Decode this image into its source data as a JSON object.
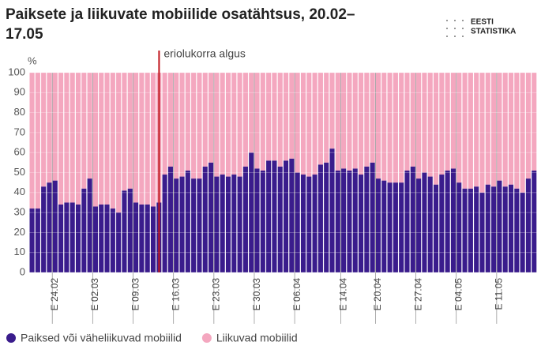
{
  "chart_data": {
    "type": "stacked_bar",
    "title": "Paiksete ja liikuvate mobiilide osatähtsus, 20.02–17.05",
    "logo": [
      "EESTI",
      "STATISTIKA"
    ],
    "ylabel": "%",
    "annotation": "eriolukorra algus",
    "categories": [
      null,
      null,
      null,
      null,
      "E 24.02",
      null,
      null,
      null,
      null,
      null,
      null,
      "E 02.03",
      null,
      null,
      null,
      null,
      null,
      null,
      "E 09.03",
      null,
      null,
      null,
      null,
      null,
      null,
      "E 16.03",
      null,
      null,
      null,
      null,
      null,
      null,
      "E 23.03",
      null,
      null,
      null,
      null,
      null,
      null,
      "E 30.03",
      null,
      null,
      null,
      null,
      null,
      null,
      "E 06.04",
      null,
      null,
      null,
      null,
      null,
      null,
      null,
      "E 14.04",
      null,
      null,
      null,
      null,
      null,
      "E 20.04",
      null,
      null,
      null,
      null,
      null,
      null,
      "E 27.04",
      null,
      null,
      null,
      null,
      null,
      null,
      "E 04.05",
      null,
      null,
      null,
      null,
      null,
      null,
      "E 11.05",
      null,
      null,
      null,
      null,
      null,
      null
    ],
    "series": [
      {
        "name": "Paiksed või väheliikuvad mobiilid",
        "color": "#3a1c8c",
        "values": [
          32,
          32,
          43,
          45,
          46,
          34,
          35,
          35,
          34,
          42,
          47,
          33,
          34,
          34,
          32,
          30,
          41,
          42,
          35,
          34,
          34,
          33,
          35,
          49,
          53,
          47,
          48,
          51,
          47,
          47,
          53,
          55,
          48,
          49,
          48,
          49,
          48,
          53,
          60,
          52,
          51,
          56,
          56,
          53,
          56,
          57,
          50,
          49,
          48,
          49,
          54,
          55,
          62,
          51,
          52,
          51,
          52,
          49,
          53,
          55,
          47,
          46,
          45,
          45,
          45,
          51,
          53,
          47,
          50,
          48,
          44,
          49,
          51,
          52,
          45,
          42,
          42,
          43,
          40,
          44,
          43,
          46,
          43,
          44,
          42,
          40,
          47,
          51
        ]
      },
      {
        "name": "Liikuvad mobiilid",
        "color": "#f4a7bf",
        "values": [
          68,
          68,
          57,
          55,
          54,
          66,
          65,
          65,
          66,
          58,
          53,
          67,
          66,
          66,
          68,
          70,
          59,
          58,
          65,
          66,
          66,
          67,
          65,
          51,
          47,
          53,
          52,
          49,
          53,
          53,
          47,
          45,
          52,
          51,
          52,
          51,
          52,
          47,
          40,
          48,
          49,
          44,
          44,
          47,
          44,
          43,
          50,
          51,
          52,
          51,
          46,
          45,
          38,
          49,
          48,
          49,
          48,
          51,
          47,
          45,
          53,
          54,
          55,
          55,
          55,
          49,
          47,
          53,
          50,
          52,
          56,
          51,
          49,
          48,
          55,
          58,
          58,
          57,
          60,
          56,
          57,
          54,
          57,
          56,
          58,
          60,
          53,
          49
        ]
      }
    ],
    "ylim": [
      0,
      100
    ],
    "yticks": [
      0,
      10,
      20,
      30,
      40,
      50,
      60,
      70,
      80,
      90,
      100
    ],
    "grid": true,
    "legend": "bottom"
  }
}
